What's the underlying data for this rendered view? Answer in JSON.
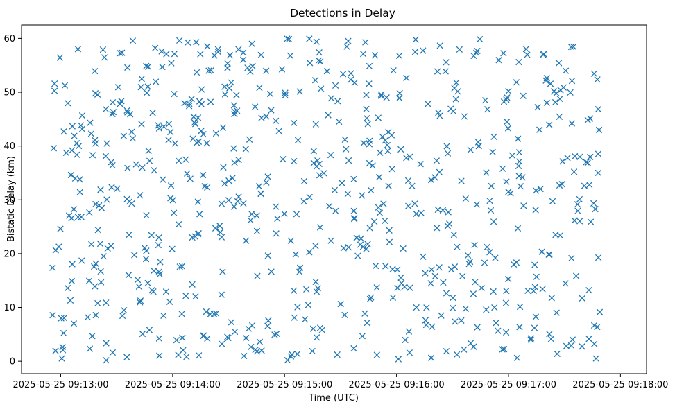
{
  "chart_data": {
    "type": "scatter",
    "title": "Detections in Delay",
    "xlabel": "Time (UTC)",
    "ylabel": "Bistatic Delay (km)",
    "marker": "x",
    "marker_color": "#1f77b4",
    "xlim": [
      "2025-05-25T09:12:39",
      "2025-05-25T09:18:14"
    ],
    "ylim": [
      -2.3,
      62.5
    ],
    "x_ticks": [
      "2025-05-25 09:13:00",
      "2025-05-25 09:14:00",
      "2025-05-25 09:15:00",
      "2025-05-25 09:16:00",
      "2025-05-25 09:17:00",
      "2025-05-25 09:18:00"
    ],
    "y_ticks": [
      "0",
      "10",
      "20",
      "30",
      "40",
      "50",
      "60"
    ],
    "x_range_seconds": [
      0,
      295
    ],
    "y_range": [
      0,
      60
    ],
    "n_points": 720,
    "seed": 20250525
  }
}
